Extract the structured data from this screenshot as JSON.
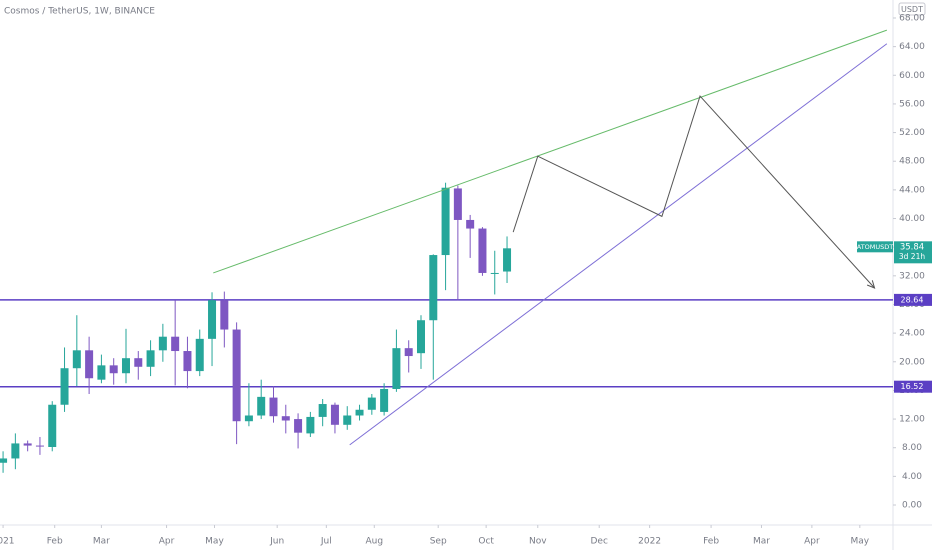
{
  "chart_data": {
    "type": "candlestick",
    "title": "Cosmos / TetherUS, 1W, BINANCE",
    "currency": "USDT",
    "up_color": "#26a69a",
    "down_color": "#7e57c2",
    "series": {
      "open": [
        5.9,
        6.5,
        8.6,
        8.3,
        8.1,
        14,
        19.1,
        21.6,
        17.5,
        19.5,
        18.4,
        20.5,
        19.3,
        21.6,
        23.5,
        21.5,
        18.7,
        23.2,
        28.6,
        24.5,
        11.7,
        12.5,
        15,
        12.4,
        12,
        10,
        12.3,
        14,
        11.2,
        12.5,
        13.3,
        13,
        16.2,
        21.9,
        21.2,
        25.8,
        34.9,
        44.2,
        39.8,
        38.6,
        32.4,
        32.6
      ],
      "high": [
        7.5,
        10,
        9,
        9.5,
        14.5,
        22,
        26.5,
        23.5,
        21,
        20.5,
        24.6,
        21.5,
        23,
        25.3,
        28.6,
        23.5,
        24.5,
        29.7,
        29.8,
        25.5,
        17,
        17.5,
        16.6,
        14,
        12.8,
        13,
        14.8,
        14.3,
        13.8,
        14,
        15.5,
        17,
        24.5,
        23,
        26.5,
        35,
        45,
        44.6,
        40.5,
        38.8,
        35.5,
        37.5
      ],
      "low": [
        4.5,
        5,
        7.5,
        7,
        7.5,
        13,
        16.6,
        15.5,
        17,
        16.8,
        17,
        17.5,
        18,
        20,
        16.7,
        16.3,
        18,
        19.4,
        22,
        8.5,
        11,
        12,
        11.5,
        10,
        7.9,
        9.5,
        11,
        10,
        10.5,
        11.8,
        12.6,
        12.5,
        15.8,
        18.5,
        19,
        17.5,
        30,
        28.6,
        34.5,
        32,
        29.4,
        31
      ],
      "close": [
        6.5,
        8.6,
        8.3,
        8.2,
        14,
        19.1,
        21.6,
        17.7,
        19.5,
        18.4,
        20.5,
        19.3,
        21.6,
        23.5,
        21.5,
        18.7,
        23.2,
        28.6,
        24.5,
        11.7,
        12.5,
        15.1,
        12.4,
        11.8,
        10.1,
        12.3,
        14.1,
        11.2,
        12.5,
        13.3,
        15,
        16.2,
        21.9,
        20.8,
        25.8,
        34.9,
        44.3,
        39.8,
        38.6,
        32.4,
        32.4,
        35.84
      ]
    },
    "symbol": "ATOMUSDT",
    "countdown": "3d 21h",
    "levels": [
      28.64,
      16.52
    ],
    "level_color": "#5b3fc4",
    "drawings": [
      {
        "color": "#66bb6a",
        "x": [
          17.1,
          71.9
        ],
        "y": [
          32.4,
          66.3
        ]
      },
      {
        "color": "#7e6fd6",
        "x": [
          28.2,
          71.9
        ],
        "y": [
          8.4,
          64.4
        ]
      },
      {
        "color": "#555555",
        "x": [
          41.5,
          43.5,
          53.6,
          56.7,
          70.9
        ],
        "y": [
          38.1,
          48.7,
          40.3,
          57.1,
          30.3
        ]
      }
    ],
    "xlim": [
      -0.25,
      72.4
    ],
    "xticks": [
      {
        "value": 0,
        "label": "2021"
      },
      {
        "value": 4.2,
        "label": "Feb"
      },
      {
        "value": 8.0,
        "label": "Mar"
      },
      {
        "value": 13.3,
        "label": "Apr"
      },
      {
        "value": 17.2,
        "label": "May"
      },
      {
        "value": 22.3,
        "label": "Jun"
      },
      {
        "value": 26.3,
        "label": "Jul"
      },
      {
        "value": 30.2,
        "label": "Aug"
      },
      {
        "value": 35.4,
        "label": "Sep"
      },
      {
        "value": 39.3,
        "label": "Oct"
      },
      {
        "value": 43.5,
        "label": "Nov"
      },
      {
        "value": 48.5,
        "label": "Dec"
      },
      {
        "value": 52.6,
        "label": "2022"
      },
      {
        "value": 57.6,
        "label": "Feb"
      },
      {
        "value": 61.7,
        "label": "Mar"
      },
      {
        "value": 65.8,
        "label": "Apr"
      },
      {
        "value": 69.7,
        "label": "May"
      }
    ],
    "ylim": [
      -2.79,
      70.51
    ],
    "yticks": [
      {
        "value": 0,
        "label": "0.00"
      },
      {
        "value": 4,
        "label": "4.00"
      },
      {
        "value": 8,
        "label": "8.00"
      },
      {
        "value": 12,
        "label": "12.00"
      },
      {
        "value": 16,
        "label": "16.00"
      },
      {
        "value": 20,
        "label": "20.00"
      },
      {
        "value": 24,
        "label": "24.00"
      },
      {
        "value": 28,
        "label": "28.00"
      },
      {
        "value": 32,
        "label": "32.00"
      },
      {
        "value": 36,
        "label": "36.00"
      },
      {
        "value": 40,
        "label": "40.00"
      },
      {
        "value": 44,
        "label": "44.00"
      },
      {
        "value": 48,
        "label": "48.00"
      },
      {
        "value": 52,
        "label": "52.00"
      },
      {
        "value": 56,
        "label": "56.00"
      },
      {
        "value": 60,
        "label": "60.00"
      },
      {
        "value": 64,
        "label": "64.00"
      },
      {
        "value": 68,
        "label": "68.00"
      }
    ]
  }
}
